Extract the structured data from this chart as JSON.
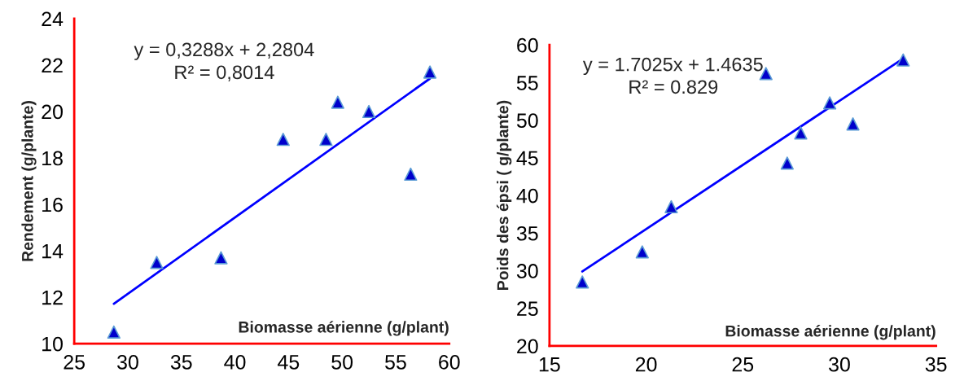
{
  "chart_data": [
    {
      "type": "scatter",
      "xlabel": "Biomasse aérienne (g/plant)",
      "ylabel": "Rendement (g/plante)",
      "annotations": [
        "y = 0,3288x + 2,2804",
        "R² = 0,8014"
      ],
      "xlim": [
        25,
        60
      ],
      "xticks": [
        25,
        30,
        35,
        40,
        45,
        50,
        55,
        60
      ],
      "ylim": [
        10,
        24
      ],
      "yticks": [
        10,
        12,
        14,
        16,
        18,
        20,
        22,
        24
      ],
      "grid": false,
      "legend": false,
      "series": [
        {
          "marker": "triangle",
          "color": "#0000cc",
          "x": [
            28.7,
            32.7,
            38.7,
            44.5,
            48.5,
            49.6,
            52.5,
            56.4,
            58.2
          ],
          "values": [
            10.5,
            13.5,
            13.7,
            18.8,
            18.8,
            20.4,
            20.0,
            17.3,
            21.7
          ]
        },
        {
          "type": "line",
          "color": "#0000ff",
          "x": [
            28.7,
            58.2
          ],
          "values": [
            11.72,
            21.42
          ]
        }
      ]
    },
    {
      "type": "scatter",
      "xlabel": "Biomasse aérienne (g/plant)",
      "ylabel": "Poids des épsi ( g/plante)",
      "annotations": [
        "y = 1.7025x + 1.4635",
        "R² = 0.829"
      ],
      "xlim": [
        15,
        35
      ],
      "xticks": [
        15,
        20,
        25,
        30,
        35
      ],
      "ylim": [
        20,
        60
      ],
      "yticks": [
        20,
        25,
        30,
        35,
        40,
        45,
        50,
        55,
        60
      ],
      "grid": false,
      "legend": false,
      "series": [
        {
          "marker": "triangle",
          "color": "#0000cc",
          "x": [
            16.7,
            19.8,
            21.3,
            26.2,
            27.3,
            28.0,
            29.5,
            30.7,
            33.3
          ],
          "values": [
            28.5,
            32.5,
            38.5,
            56.2,
            44.3,
            48.3,
            52.3,
            49.5,
            58.0
          ]
        },
        {
          "type": "line",
          "color": "#0000ff",
          "x": [
            16.7,
            33.3
          ],
          "values": [
            29.9,
            58.2
          ]
        }
      ]
    }
  ]
}
